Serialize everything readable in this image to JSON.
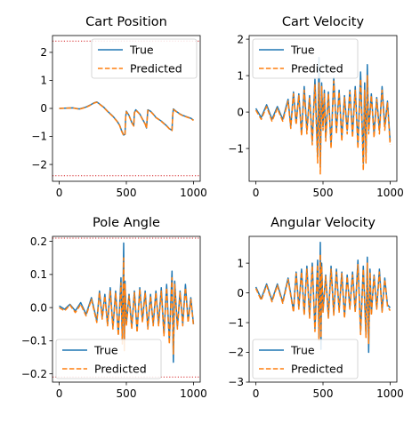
{
  "chart_data": [
    {
      "type": "line",
      "title": "Cart Position",
      "xlim": [
        -50,
        1050
      ],
      "ylim": [
        -2.6,
        2.6
      ],
      "xticks": [
        0,
        500,
        1000
      ],
      "yticks": [
        -2,
        -1,
        0,
        1,
        2
      ],
      "threshold_lines": [
        2.4,
        -2.4
      ],
      "legend": "top-right",
      "series": [
        {
          "name": "True",
          "color": "#1f77b4",
          "style": "solid",
          "x": [
            0,
            60,
            100,
            150,
            200,
            230,
            260,
            280,
            300,
            330,
            360,
            400,
            430,
            450,
            465,
            480,
            490,
            495,
            500,
            520,
            540,
            555,
            560,
            570,
            600,
            620,
            640,
            650,
            660,
            680,
            700,
            720,
            760,
            800,
            820,
            840,
            845,
            850,
            870,
            900,
            920,
            950,
            980,
            1000
          ],
          "y": [
            0,
            0.01,
            0.02,
            -0.02,
            0.05,
            0.12,
            0.2,
            0.23,
            0.16,
            0.05,
            -0.1,
            -0.28,
            -0.45,
            -0.6,
            -0.8,
            -0.95,
            -0.92,
            -0.3,
            -0.1,
            -0.25,
            -0.5,
            -0.62,
            -0.15,
            -0.05,
            -0.2,
            -0.38,
            -0.55,
            -0.7,
            -0.05,
            -0.1,
            -0.2,
            -0.32,
            -0.45,
            -0.62,
            -0.72,
            -0.78,
            -0.25,
            -0.02,
            -0.1,
            -0.2,
            -0.25,
            -0.3,
            -0.35,
            -0.42
          ]
        },
        {
          "name": "Predicted",
          "color": "#ff7f0e",
          "style": "dashed",
          "x": [
            0,
            60,
            100,
            150,
            200,
            230,
            260,
            280,
            300,
            330,
            360,
            400,
            430,
            450,
            465,
            480,
            490,
            495,
            500,
            520,
            540,
            555,
            560,
            570,
            600,
            620,
            640,
            650,
            660,
            680,
            700,
            720,
            760,
            800,
            820,
            840,
            845,
            850,
            870,
            900,
            920,
            950,
            980,
            1000
          ],
          "y": [
            0,
            0.01,
            0.02,
            -0.03,
            0.04,
            0.11,
            0.19,
            0.22,
            0.15,
            0.04,
            -0.11,
            -0.29,
            -0.46,
            -0.61,
            -0.82,
            -0.97,
            -0.93,
            -0.32,
            -0.12,
            -0.26,
            -0.51,
            -0.63,
            -0.17,
            -0.06,
            -0.21,
            -0.39,
            -0.56,
            -0.71,
            -0.07,
            -0.11,
            -0.21,
            -0.33,
            -0.46,
            -0.63,
            -0.73,
            -0.79,
            -0.27,
            -0.04,
            -0.11,
            -0.21,
            -0.26,
            -0.31,
            -0.36,
            -0.43
          ]
        }
      ]
    },
    {
      "type": "line",
      "title": "Cart Velocity",
      "xlim": [
        -50,
        1050
      ],
      "ylim": [
        -1.9,
        2.1
      ],
      "xticks": [
        0,
        500,
        1000
      ],
      "yticks": [
        -1,
        0,
        1,
        2
      ],
      "legend": "top-left",
      "series": [
        {
          "name": "True",
          "color": "#1f77b4",
          "style": "solid",
          "x": [
            0,
            40,
            80,
            120,
            160,
            200,
            240,
            260,
            280,
            300,
            320,
            340,
            360,
            380,
            400,
            420,
            440,
            460,
            470,
            480,
            490,
            500,
            510,
            520,
            540,
            560,
            580,
            600,
            620,
            640,
            660,
            680,
            700,
            720,
            740,
            760,
            780,
            800,
            810,
            820,
            830,
            840,
            860,
            880,
            900,
            920,
            940,
            960,
            980,
            1000
          ],
          "y": [
            0.1,
            -0.15,
            0.2,
            -0.2,
            0.15,
            -0.2,
            0.35,
            -0.4,
            0.55,
            -0.3,
            0.5,
            -0.6,
            0.7,
            -0.5,
            0.45,
            -0.8,
            0.9,
            -1.2,
            1.5,
            -1.5,
            0.8,
            -0.4,
            0.6,
            -0.7,
            0.55,
            -0.9,
            0.95,
            -0.5,
            0.6,
            -0.7,
            0.45,
            -0.5,
            0.6,
            -0.6,
            0.7,
            -0.9,
            1.1,
            -1.4,
            0.8,
            -1.2,
            1.3,
            -0.5,
            0.5,
            -0.6,
            0.4,
            -0.5,
            0.7,
            -0.4,
            0.3,
            -0.8
          ]
        },
        {
          "name": "Predicted",
          "color": "#ff7f0e",
          "style": "dashed",
          "x": [
            0,
            40,
            80,
            120,
            160,
            200,
            240,
            260,
            280,
            300,
            320,
            340,
            360,
            380,
            400,
            420,
            440,
            460,
            470,
            480,
            490,
            500,
            510,
            520,
            540,
            560,
            580,
            600,
            620,
            640,
            660,
            680,
            700,
            720,
            740,
            760,
            780,
            800,
            810,
            820,
            830,
            840,
            860,
            880,
            900,
            920,
            940,
            960,
            980,
            1000
          ],
          "y": [
            0.05,
            -0.2,
            0.15,
            -0.25,
            0.1,
            -0.25,
            0.3,
            -0.45,
            0.5,
            -0.35,
            0.45,
            -0.65,
            0.6,
            -0.6,
            0.4,
            -0.9,
            0.75,
            -1.4,
            0.8,
            -1.7,
            0.7,
            -0.5,
            0.5,
            -0.8,
            0.5,
            -1.0,
            0.85,
            -0.6,
            0.55,
            -0.8,
            0.4,
            -0.6,
            0.55,
            -0.7,
            0.6,
            -1.0,
            0.9,
            -1.6,
            0.6,
            -1.4,
            1.0,
            -0.6,
            0.45,
            -0.7,
            0.35,
            -0.6,
            0.6,
            -0.5,
            0.25,
            -0.9
          ]
        }
      ]
    },
    {
      "type": "line",
      "title": "Pole Angle",
      "xlim": [
        -50,
        1050
      ],
      "ylim": [
        -0.225,
        0.215
      ],
      "xticks": [
        0,
        500,
        1000
      ],
      "yticks": [
        -0.2,
        -0.1,
        0.0,
        0.1,
        0.2
      ],
      "ytick_labels": [
        "−0.2",
        "−0.1",
        "0.0",
        "0.1",
        "0.2"
      ],
      "threshold_lines": [
        0.2095,
        -0.2095
      ],
      "legend": "bottom-left",
      "series": [
        {
          "name": "True",
          "color": "#1f77b4",
          "style": "solid",
          "x": [
            0,
            40,
            80,
            120,
            160,
            200,
            240,
            280,
            300,
            320,
            340,
            360,
            380,
            400,
            420,
            440,
            460,
            470,
            480,
            485,
            490,
            500,
            520,
            540,
            560,
            580,
            600,
            620,
            640,
            660,
            680,
            700,
            720,
            740,
            760,
            780,
            800,
            820,
            840,
            850,
            860,
            880,
            900,
            920,
            940,
            960,
            980,
            1000
          ],
          "y": [
            0.005,
            -0.005,
            0.01,
            -0.01,
            0.015,
            -0.02,
            0.03,
            -0.04,
            0.05,
            -0.03,
            0.04,
            -0.05,
            0.06,
            -0.06,
            0.05,
            -0.08,
            0.09,
            -0.1,
            0.195,
            -0.12,
            0.08,
            -0.05,
            0.04,
            -0.06,
            0.05,
            -0.07,
            0.06,
            -0.04,
            0.05,
            -0.06,
            0.04,
            -0.05,
            0.05,
            -0.05,
            0.06,
            -0.08,
            0.07,
            -0.1,
            0.11,
            -0.165,
            0.08,
            -0.06,
            0.05,
            -0.05,
            0.07,
            -0.04,
            0.03,
            -0.05
          ]
        },
        {
          "name": "Predicted",
          "color": "#ff7f0e",
          "style": "dashed",
          "x": [
            0,
            40,
            80,
            120,
            160,
            200,
            240,
            280,
            300,
            320,
            340,
            360,
            380,
            400,
            420,
            440,
            460,
            470,
            480,
            485,
            490,
            500,
            520,
            540,
            560,
            580,
            600,
            620,
            640,
            660,
            680,
            700,
            720,
            740,
            760,
            780,
            800,
            820,
            840,
            850,
            860,
            880,
            900,
            920,
            940,
            960,
            980,
            1000
          ],
          "y": [
            0.0,
            -0.01,
            0.008,
            -0.015,
            0.01,
            -0.025,
            0.025,
            -0.045,
            0.045,
            -0.035,
            0.035,
            -0.055,
            0.05,
            -0.065,
            0.045,
            -0.085,
            0.075,
            -0.11,
            0.15,
            -0.13,
            0.07,
            -0.055,
            0.035,
            -0.065,
            0.045,
            -0.075,
            0.055,
            -0.045,
            0.045,
            -0.065,
            0.035,
            -0.055,
            0.045,
            -0.055,
            0.05,
            -0.085,
            0.06,
            -0.11,
            0.09,
            -0.14,
            0.07,
            -0.065,
            0.045,
            -0.055,
            0.06,
            -0.045,
            0.025,
            -0.055
          ]
        }
      ]
    },
    {
      "type": "line",
      "title": "Angular Velocity",
      "xlim": [
        -50,
        1050
      ],
      "ylim": [
        -3.0,
        1.9
      ],
      "xticks": [
        0,
        500,
        1000
      ],
      "yticks": [
        -3,
        -2,
        -1,
        0,
        1
      ],
      "legend": "bottom-left",
      "series": [
        {
          "name": "True",
          "color": "#1f77b4",
          "style": "solid",
          "x": [
            0,
            40,
            80,
            120,
            160,
            200,
            240,
            280,
            300,
            320,
            340,
            360,
            380,
            400,
            420,
            440,
            460,
            470,
            480,
            485,
            490,
            500,
            520,
            540,
            560,
            580,
            600,
            620,
            640,
            660,
            680,
            700,
            720,
            740,
            760,
            780,
            800,
            820,
            830,
            840,
            850,
            860,
            880,
            900,
            920,
            940,
            960,
            980,
            1000
          ],
          "y": [
            0.2,
            -0.2,
            0.3,
            -0.25,
            0.3,
            -0.3,
            0.5,
            -0.6,
            0.7,
            -0.5,
            0.8,
            -0.7,
            0.9,
            -0.8,
            1.0,
            -1.2,
            1.1,
            -1.5,
            1.7,
            -1.9,
            1.0,
            -0.6,
            0.6,
            -0.8,
            0.9,
            -0.7,
            0.8,
            -0.6,
            0.7,
            -0.8,
            0.6,
            -0.5,
            0.7,
            -0.6,
            1.1,
            -1.3,
            0.9,
            -1.4,
            1.2,
            -2.0,
            0.8,
            -0.7,
            0.6,
            -0.5,
            0.8,
            -0.6,
            0.5,
            -0.4,
            -0.5
          ]
        },
        {
          "name": "Predicted",
          "color": "#ff7f0e",
          "style": "dashed",
          "x": [
            0,
            40,
            80,
            120,
            160,
            200,
            240,
            280,
            300,
            320,
            340,
            360,
            380,
            400,
            420,
            440,
            460,
            470,
            480,
            485,
            490,
            500,
            520,
            540,
            560,
            580,
            600,
            620,
            640,
            660,
            680,
            700,
            720,
            740,
            760,
            780,
            800,
            820,
            830,
            840,
            850,
            860,
            880,
            900,
            920,
            940,
            960,
            980,
            1000
          ],
          "y": [
            0.15,
            -0.25,
            0.25,
            -0.3,
            0.25,
            -0.35,
            0.45,
            -0.65,
            0.65,
            -0.55,
            0.7,
            -0.75,
            0.8,
            -0.85,
            0.9,
            -1.3,
            0.95,
            -1.6,
            1.3,
            -1.5,
            0.9,
            -0.65,
            0.55,
            -0.85,
            0.8,
            -0.75,
            0.7,
            -0.65,
            0.65,
            -0.85,
            0.55,
            -0.55,
            0.6,
            -0.65,
            0.95,
            -1.4,
            0.8,
            -1.5,
            1.0,
            -1.7,
            0.7,
            -0.75,
            0.55,
            -0.55,
            0.7,
            -0.65,
            0.45,
            -0.45,
            -0.6
          ]
        }
      ]
    }
  ]
}
